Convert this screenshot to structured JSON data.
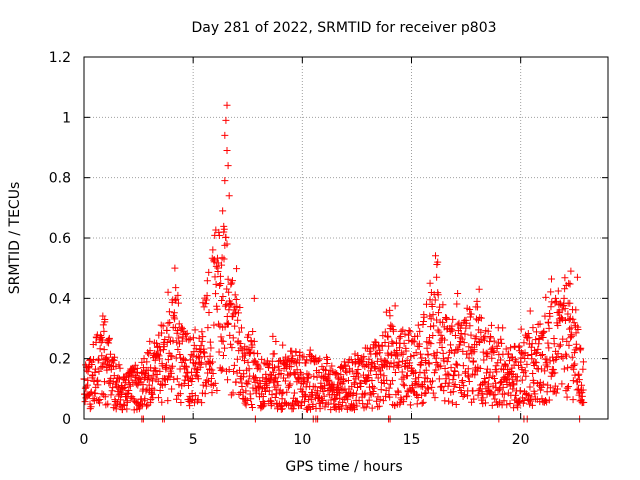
{
  "chart_data": {
    "type": "scatter",
    "title": "Day 281 of 2022, SRMTID for receiver p803",
    "xlabel": "GPS time / hours",
    "ylabel": "SRMTID / TECUs",
    "xlim": [
      0,
      24
    ],
    "ylim": [
      0,
      1.2
    ],
    "xticks": [
      0,
      5,
      10,
      15,
      20
    ],
    "xtick_labels": [
      "0",
      "5",
      "10",
      "15",
      "20"
    ],
    "yticks": [
      0,
      0.2,
      0.4,
      0.6,
      0.8,
      1.0,
      1.2
    ],
    "ytick_labels": [
      "0",
      "0.2",
      "0.4",
      "0.6",
      "0.8",
      "1",
      "1.2"
    ],
    "grid": true,
    "marker": "+",
    "series": [
      {
        "name": "SRMTID",
        "color": "#ff0000",
        "x_start": 0.0,
        "x_step": 0.0125,
        "envelope": [
          [
            0.0,
            0.08
          ],
          [
            0.4,
            0.15
          ],
          [
            0.9,
            0.2
          ],
          [
            1.3,
            0.14
          ],
          [
            1.8,
            0.08
          ],
          [
            2.3,
            0.1
          ],
          [
            2.7,
            0.12
          ],
          [
            3.3,
            0.15
          ],
          [
            3.8,
            0.22
          ],
          [
            4.2,
            0.25
          ],
          [
            4.6,
            0.16
          ],
          [
            5.0,
            0.17
          ],
          [
            5.5,
            0.22
          ],
          [
            5.9,
            0.35
          ],
          [
            6.2,
            0.38
          ],
          [
            6.5,
            0.36
          ],
          [
            6.8,
            0.28
          ],
          [
            7.2,
            0.2
          ],
          [
            7.6,
            0.16
          ],
          [
            8.0,
            0.12
          ],
          [
            8.5,
            0.13
          ],
          [
            9.0,
            0.12
          ],
          [
            9.5,
            0.13
          ],
          [
            10.0,
            0.13
          ],
          [
            10.5,
            0.12
          ],
          [
            11.0,
            0.11
          ],
          [
            11.5,
            0.1
          ],
          [
            12.0,
            0.11
          ],
          [
            12.5,
            0.12
          ],
          [
            13.0,
            0.14
          ],
          [
            13.5,
            0.15
          ],
          [
            14.0,
            0.18
          ],
          [
            14.5,
            0.17
          ],
          [
            15.0,
            0.17
          ],
          [
            15.5,
            0.2
          ],
          [
            16.0,
            0.26
          ],
          [
            16.5,
            0.22
          ],
          [
            17.0,
            0.18
          ],
          [
            17.5,
            0.2
          ],
          [
            18.0,
            0.24
          ],
          [
            18.5,
            0.17
          ],
          [
            19.0,
            0.15
          ],
          [
            19.5,
            0.14
          ],
          [
            20.0,
            0.16
          ],
          [
            20.5,
            0.17
          ],
          [
            21.0,
            0.2
          ],
          [
            21.5,
            0.22
          ],
          [
            22.0,
            0.27
          ],
          [
            22.4,
            0.25
          ],
          [
            22.8,
            0.12
          ]
        ],
        "peaks": [
          {
            "x": 6.55,
            "y": 1.04
          },
          {
            "x": 6.5,
            "y": 0.99
          },
          {
            "x": 6.45,
            "y": 0.94
          },
          {
            "x": 6.55,
            "y": 0.89
          },
          {
            "x": 6.6,
            "y": 0.84
          },
          {
            "x": 6.45,
            "y": 0.79
          },
          {
            "x": 6.65,
            "y": 0.74
          },
          {
            "x": 6.35,
            "y": 0.69
          },
          {
            "x": 6.4,
            "y": 0.62
          },
          {
            "x": 6.55,
            "y": 0.58
          },
          {
            "x": 6.3,
            "y": 0.51
          },
          {
            "x": 16.2,
            "y": 0.52
          },
          {
            "x": 16.15,
            "y": 0.47
          },
          {
            "x": 15.85,
            "y": 0.45
          },
          {
            "x": 18.1,
            "y": 0.43
          },
          {
            "x": 22.3,
            "y": 0.49
          },
          {
            "x": 22.6,
            "y": 0.47
          },
          {
            "x": 4.3,
            "y": 0.41
          },
          {
            "x": 3.85,
            "y": 0.42
          },
          {
            "x": 14.0,
            "y": 0.36
          },
          {
            "x": 0.95,
            "y": 0.33
          },
          {
            "x": 7.8,
            "y": 0.4
          },
          {
            "x": 21.6,
            "y": 0.4
          }
        ],
        "point_count": 1840
      }
    ]
  }
}
